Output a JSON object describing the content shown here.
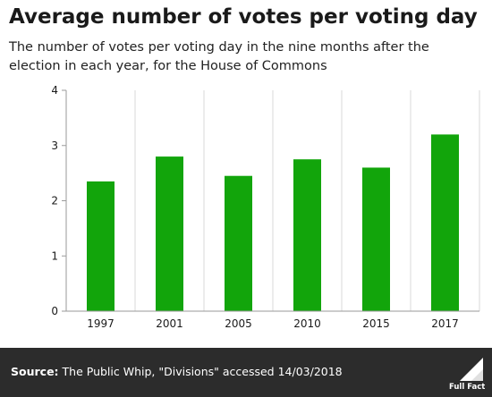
{
  "header": {
    "title": "Average number of votes per voting day",
    "subtitle": "The number of votes per voting day in the nine months after the election in each year, for the House of Commons"
  },
  "footer": {
    "source_label": "Source:",
    "source_text": "The Public Whip, \"Divisions\" accessed 14/03/2018",
    "logo_text": "Full Fact"
  },
  "colors": {
    "bar": "#12a50b",
    "gridline": "#d9d9d9",
    "footer_bg": "#2c2c2c"
  },
  "chart_data": {
    "type": "bar",
    "categories": [
      "1997",
      "2001",
      "2005",
      "2010",
      "2015",
      "2017"
    ],
    "values": [
      2.35,
      2.8,
      2.45,
      2.75,
      2.6,
      3.2
    ],
    "title": "Average number of votes per voting day",
    "xlabel": "",
    "ylabel": "",
    "ylim": [
      0,
      4
    ],
    "yticks": [
      "0",
      "1",
      "2",
      "3",
      "4"
    ],
    "grid": "vertical separators between categories",
    "legend": "none"
  }
}
